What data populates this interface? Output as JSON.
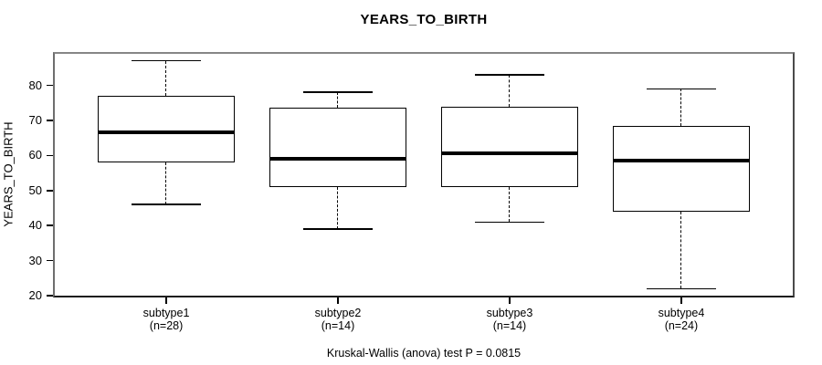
{
  "chart_data": {
    "type": "boxplot",
    "title": "YEARS_TO_BIRTH",
    "ylabel": "YEARS_TO_BIRTH",
    "caption": "Kruskal-Wallis (anova) test P = 0.0815",
    "p_value": 0.0815,
    "grid": false,
    "legend": "none",
    "yticks": [
      20,
      30,
      40,
      50,
      60,
      70,
      80
    ],
    "ylim": [
      19.5,
      89.5
    ],
    "xlim": [
      0.34,
      4.66
    ],
    "box_width_units": 0.8,
    "cap_width_units": 0.4,
    "frame_color": "#6e6e6e",
    "box_color": "#000000",
    "groups": [
      {
        "label": "subtype1",
        "n_label": "(n=28)",
        "n": 28,
        "whisker_low": 46,
        "q1": 58,
        "median": 66.5,
        "q3": 77,
        "whisker_high": 87
      },
      {
        "label": "subtype2",
        "n_label": "(n=14)",
        "n": 14,
        "whisker_low": 39,
        "q1": 51,
        "median": 59,
        "q3": 73.5,
        "whisker_high": 78
      },
      {
        "label": "subtype3",
        "n_label": "(n=14)",
        "n": 14,
        "whisker_low": 41,
        "q1": 51,
        "median": 60.5,
        "q3": 74,
        "whisker_high": 83
      },
      {
        "label": "subtype4",
        "n_label": "(n=24)",
        "n": 24,
        "whisker_low": 22,
        "q1": 44,
        "median": 58.5,
        "q3": 68.5,
        "whisker_high": 79
      }
    ]
  }
}
